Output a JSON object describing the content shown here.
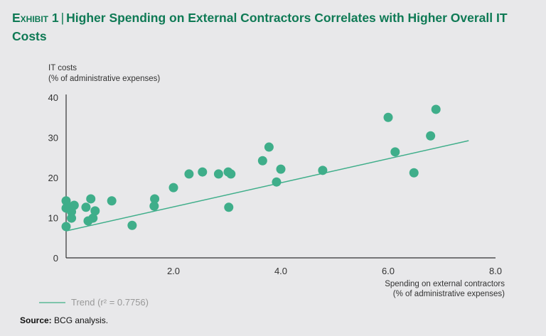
{
  "chart_data": {
    "type": "scatter",
    "title_prefix": "Exhibit 1",
    "title_separator": "|",
    "title": "Higher Spending on External Contractors Correlates with Higher Overall IT Costs",
    "ylabel_line1": "IT costs",
    "ylabel_line2": "(% of administrative expenses)",
    "xlabel_line1": "Spending on external contractors",
    "xlabel_line2": "(% of administrative expenses)",
    "xlim": [
      0,
      8
    ],
    "ylim": [
      0,
      40
    ],
    "x_ticks": [
      "2.0",
      "4.0",
      "6.0",
      "8.0"
    ],
    "x_tick_values": [
      2,
      4,
      6,
      8
    ],
    "y_ticks": [
      "0",
      "10",
      "20",
      "30",
      "40"
    ],
    "y_tick_values": [
      0,
      10,
      20,
      30,
      40
    ],
    "grid": false,
    "point_color": "#3fae8a",
    "trend_color": "#3fae8a",
    "points": [
      [
        0.0,
        14.2
      ],
      [
        0.0,
        12.4
      ],
      [
        0.07,
        12.7
      ],
      [
        0.15,
        13.1
      ],
      [
        0.1,
        11.5
      ],
      [
        0.1,
        9.9
      ],
      [
        0.0,
        7.8
      ],
      [
        0.37,
        12.6
      ],
      [
        0.46,
        14.7
      ],
      [
        0.54,
        11.7
      ],
      [
        0.5,
        9.9
      ],
      [
        0.41,
        9.2
      ],
      [
        0.85,
        14.2
      ],
      [
        1.23,
        8.1
      ],
      [
        1.65,
        14.7
      ],
      [
        1.64,
        12.9
      ],
      [
        2.0,
        17.5
      ],
      [
        2.29,
        20.9
      ],
      [
        2.54,
        21.4
      ],
      [
        2.84,
        20.9
      ],
      [
        3.02,
        21.4
      ],
      [
        3.07,
        20.9
      ],
      [
        3.03,
        12.6
      ],
      [
        3.66,
        24.2
      ],
      [
        3.78,
        27.6
      ],
      [
        3.92,
        18.9
      ],
      [
        4.0,
        22.1
      ],
      [
        4.78,
        21.8
      ],
      [
        6.0,
        35.0
      ],
      [
        6.13,
        26.4
      ],
      [
        6.48,
        21.2
      ],
      [
        6.79,
        30.4
      ],
      [
        6.89,
        37.0
      ]
    ],
    "trend": {
      "label": "Trend (r² = 0.7756)",
      "x": [
        0,
        7.5
      ],
      "y": [
        6.7,
        29.2
      ]
    },
    "legend_position": "bottom-left"
  },
  "source": {
    "label": "Source:",
    "text": " BCG analysis."
  }
}
